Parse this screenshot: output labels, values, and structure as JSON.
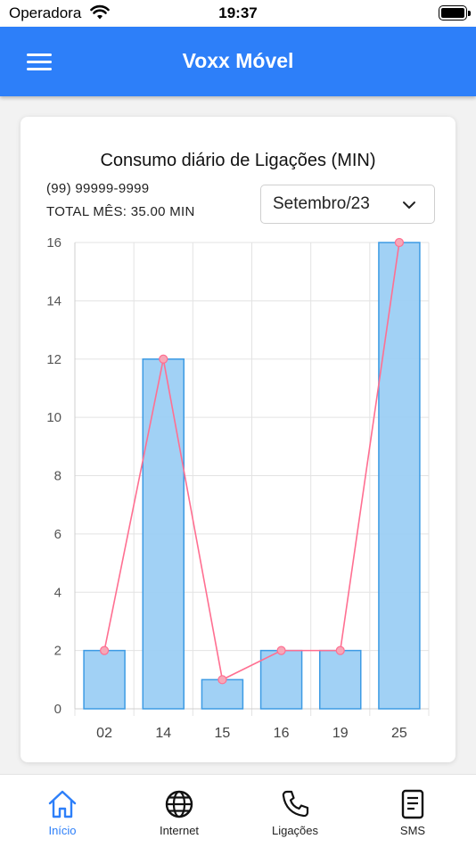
{
  "status_bar": {
    "carrier": "Operadora",
    "time": "19:37"
  },
  "header": {
    "title": "Voxx Móvel",
    "menu_icon": "hamburger-menu-icon"
  },
  "card": {
    "phone": "(99) 99999-9999",
    "total": "TOTAL MÊS: 35.00 MIN",
    "month_select": {
      "value": "Setembro/23",
      "icon": "chevron-down-icon"
    }
  },
  "chart_data": {
    "type": "bar",
    "title": "Consumo diário de Ligações (MIN)",
    "categories": [
      "02",
      "14",
      "15",
      "16",
      "19",
      "25"
    ],
    "values": [
      2,
      12,
      1,
      2,
      2,
      16
    ],
    "line_overlay": true,
    "ylim": [
      0,
      16
    ],
    "yticks": [
      0,
      2,
      4,
      6,
      8,
      10,
      12,
      14,
      16
    ],
    "grid": true,
    "colors": {
      "bar_fill": "#9ccff4",
      "bar_stroke": "#3d9be4",
      "line": "#ff6f91",
      "point": "#f6a7b8"
    }
  },
  "bottom_nav": [
    {
      "label": "Início",
      "icon": "home-icon",
      "active": true
    },
    {
      "label": "Internet",
      "icon": "globe-icon",
      "active": false
    },
    {
      "label": "Ligações",
      "icon": "phone-icon",
      "active": false
    },
    {
      "label": "SMS",
      "icon": "document-icon",
      "active": false
    }
  ],
  "colors": {
    "primary": "#2d7ff9",
    "background": "#f2f2f2"
  }
}
